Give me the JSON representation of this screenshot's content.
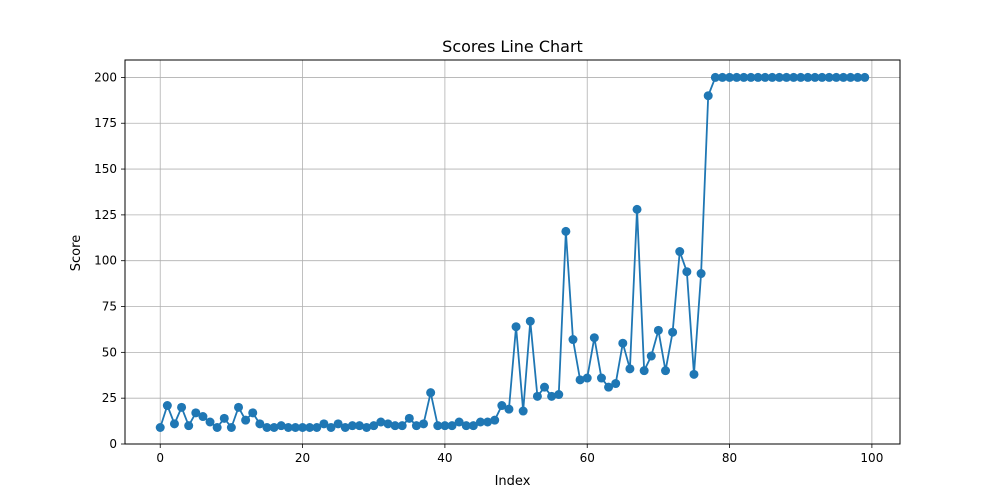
{
  "chart_data": {
    "type": "line",
    "title": "Scores Line Chart",
    "xlabel": "Index",
    "ylabel": "Score",
    "xlim": [
      -4.95,
      103.95
    ],
    "ylim": [
      0,
      209.5
    ],
    "x_ticks": [
      0,
      20,
      40,
      60,
      80,
      100
    ],
    "y_ticks": [
      0,
      25,
      50,
      75,
      100,
      125,
      150,
      175,
      200
    ],
    "grid": true,
    "legend": "none",
    "colors": {
      "line": "#1f77b4",
      "grid": "#b0b0b0",
      "axis": "#000000"
    },
    "series": [
      {
        "x": [
          0,
          1,
          2,
          3,
          4,
          5,
          6,
          7,
          8,
          9,
          10,
          11,
          12,
          13,
          14,
          15,
          16,
          17,
          18,
          19,
          20,
          21,
          22,
          23,
          24,
          25,
          26,
          27,
          28,
          29,
          30,
          31,
          32,
          33,
          34,
          35,
          36,
          37,
          38,
          39,
          40,
          41,
          42,
          43,
          44,
          45,
          46,
          47,
          48,
          49,
          50,
          51,
          52,
          53,
          54,
          55,
          56,
          57,
          58,
          59,
          60,
          61,
          62,
          63,
          64,
          65,
          66,
          67,
          68,
          69,
          70,
          71,
          72,
          73,
          74,
          75,
          76,
          77,
          78,
          79,
          80,
          81,
          82,
          83,
          84,
          85,
          86,
          87,
          88,
          89,
          90,
          91,
          92,
          93,
          94,
          95,
          96,
          97,
          98,
          99
        ],
        "values": [
          9,
          21,
          11,
          20,
          10,
          17,
          15,
          12,
          9,
          14,
          9,
          20,
          13,
          17,
          11,
          9,
          9,
          10,
          9,
          9,
          9,
          9,
          9,
          11,
          9,
          11,
          9,
          10,
          10,
          9,
          10,
          12,
          11,
          10,
          10,
          14,
          10,
          11,
          28,
          10,
          10,
          10,
          12,
          10,
          10,
          12,
          12,
          13,
          21,
          19,
          64,
          18,
          67,
          26,
          31,
          26,
          27,
          116,
          57,
          35,
          36,
          58,
          36,
          31,
          33,
          55,
          41,
          128,
          40,
          48,
          62,
          40,
          61,
          105,
          94,
          38,
          93,
          190,
          200,
          200,
          200,
          200,
          200,
          200,
          200,
          200,
          200,
          200,
          200,
          200,
          200,
          200,
          200,
          200,
          200,
          200,
          200,
          200,
          200,
          200
        ]
      }
    ]
  }
}
